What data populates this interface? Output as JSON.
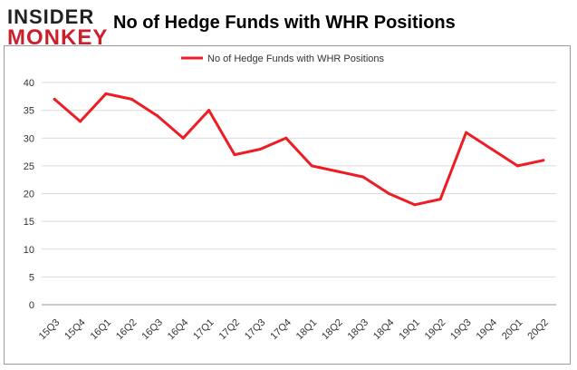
{
  "logo": {
    "line1": "INSIDER",
    "line2": "MONKEY"
  },
  "chart_data": {
    "type": "line",
    "title": "No of Hedge Funds with WHR Positions",
    "categories": [
      "15Q3",
      "15Q4",
      "16Q1",
      "16Q2",
      "16Q3",
      "16Q4",
      "17Q1",
      "17Q2",
      "17Q3",
      "17Q4",
      "18Q1",
      "18Q2",
      "18Q3",
      "18Q4",
      "19Q1",
      "19Q2",
      "19Q3",
      "19Q4",
      "20Q1",
      "20Q2"
    ],
    "series": [
      {
        "name": "No of Hedge Funds with WHR Positions",
        "color": "#ee1c24",
        "values": [
          37,
          33,
          38,
          37,
          34,
          30,
          35,
          27,
          28,
          30,
          25,
          24,
          23,
          20,
          18,
          19,
          31,
          28,
          25,
          26
        ]
      }
    ],
    "xlabel": "",
    "ylabel": "",
    "ylim": [
      0,
      40
    ],
    "yticks": [
      0,
      5,
      10,
      15,
      20,
      25,
      30,
      35,
      40
    ],
    "grid": true,
    "legend": "top-center"
  }
}
